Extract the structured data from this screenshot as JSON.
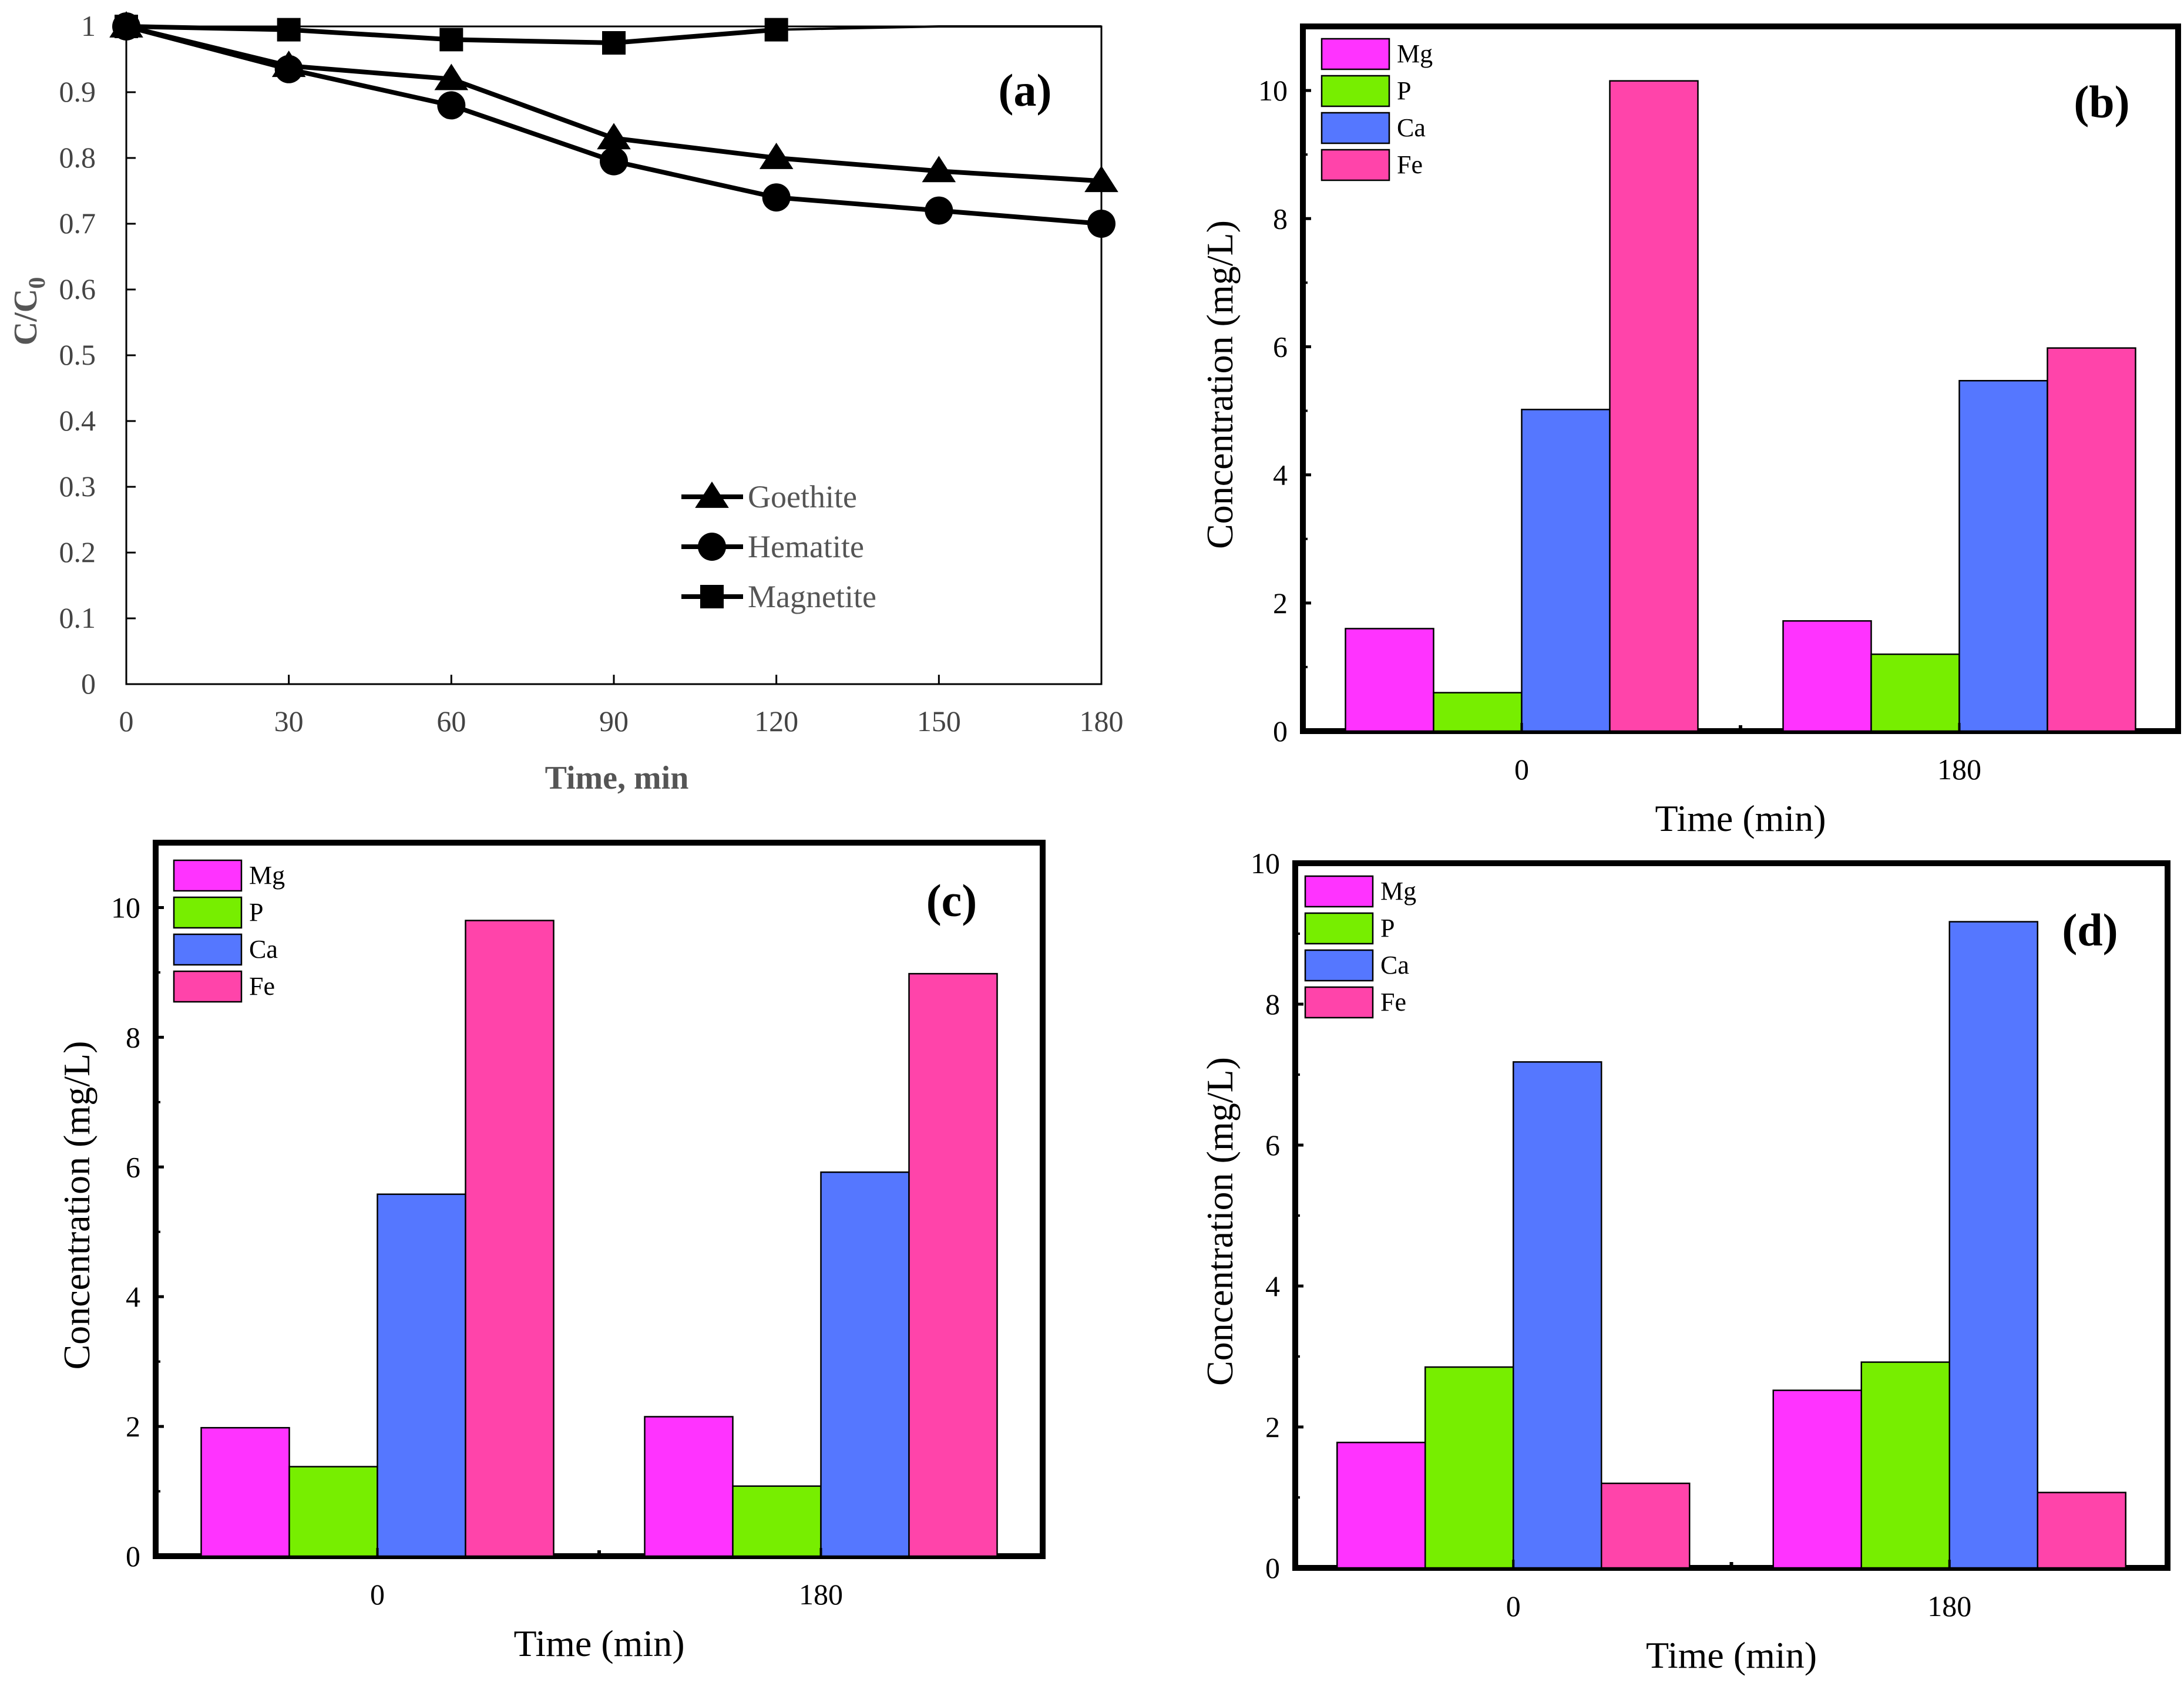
{
  "chart_data": [
    {
      "panel": "(a)",
      "type": "line",
      "xlabel": "Time, min",
      "ylabel": "C/C",
      "ylabel_sub": "0",
      "x": [
        0,
        30,
        60,
        90,
        120,
        150,
        180
      ],
      "x_ticks": [
        "0",
        "30",
        "60",
        "90",
        "120",
        "150",
        "180"
      ],
      "y_ticks": [
        "0",
        "0.1",
        "0.2",
        "0.3",
        "0.4",
        "0.5",
        "0.6",
        "0.7",
        "0.8",
        "0.9",
        "1"
      ],
      "xlim": [
        0,
        180
      ],
      "ylim": [
        0,
        1
      ],
      "series": [
        {
          "name": "Goethite",
          "marker": "triangle",
          "x": [
            0,
            30,
            60,
            90,
            120,
            150,
            180
          ],
          "values": [
            1.0,
            0.94,
            0.92,
            0.83,
            0.8,
            0.78,
            0.765
          ]
        },
        {
          "name": "Hematite",
          "marker": "circle",
          "x": [
            0,
            30,
            60,
            90,
            120,
            150,
            180
          ],
          "values": [
            1.0,
            0.935,
            0.88,
            0.795,
            0.74,
            0.72,
            0.7
          ]
        },
        {
          "name": "Magnetite",
          "marker": "square",
          "x": [
            0,
            30,
            60,
            90,
            120
          ],
          "values": [
            1.0,
            0.995,
            0.98,
            0.975,
            0.995
          ],
          "tail": [
            [
              120,
              0.995
            ],
            [
              150,
              1.0
            ],
            [
              180,
              1.0
            ]
          ]
        }
      ],
      "legend_position": "bottom-center"
    },
    {
      "panel": "(b)",
      "type": "bar",
      "xlabel": "Time (min)",
      "ylabel": "Concentration (mg/L)",
      "categories": [
        "0",
        "180"
      ],
      "y_ticks": [
        "0",
        "2",
        "4",
        "6",
        "8",
        "10"
      ],
      "ylim": [
        0,
        11
      ],
      "series": [
        {
          "name": "Mg",
          "color": "#ff33ff",
          "values": [
            1.6,
            1.72
          ]
        },
        {
          "name": "P",
          "color": "#77ee00",
          "values": [
            0.6,
            1.2
          ]
        },
        {
          "name": "Ca",
          "color": "#5577ff",
          "values": [
            5.02,
            5.47
          ]
        },
        {
          "name": "Fe",
          "color": "#ff44aa",
          "values": [
            10.15,
            5.98
          ]
        }
      ],
      "legend_position": "top-left"
    },
    {
      "panel": "(c)",
      "type": "bar",
      "xlabel": "Time (min)",
      "ylabel": "Concentration (mg/L)",
      "categories": [
        "0",
        "180"
      ],
      "y_ticks": [
        "0",
        "2",
        "4",
        "6",
        "8",
        "10"
      ],
      "ylim": [
        0,
        11
      ],
      "series": [
        {
          "name": "Mg",
          "color": "#ff33ff",
          "values": [
            1.98,
            2.15
          ]
        },
        {
          "name": "P",
          "color": "#77ee00",
          "values": [
            1.38,
            1.08
          ]
        },
        {
          "name": "Ca",
          "color": "#5577ff",
          "values": [
            5.58,
            5.92
          ]
        },
        {
          "name": "Fe",
          "color": "#ff44aa",
          "values": [
            9.8,
            8.98
          ]
        }
      ],
      "legend_position": "top-left"
    },
    {
      "panel": "(d)",
      "type": "bar",
      "xlabel": "Time (min)",
      "ylabel": "Concentration (mg/L)",
      "categories": [
        "0",
        "180"
      ],
      "y_ticks": [
        "0",
        "2",
        "4",
        "6",
        "8",
        "10"
      ],
      "ylim": [
        0,
        10
      ],
      "series": [
        {
          "name": "Mg",
          "color": "#ff33ff",
          "values": [
            1.78,
            2.52
          ]
        },
        {
          "name": "P",
          "color": "#77ee00",
          "values": [
            2.85,
            2.92
          ]
        },
        {
          "name": "Ca",
          "color": "#5577ff",
          "values": [
            7.18,
            9.17
          ]
        },
        {
          "name": "Fe",
          "color": "#ff44aa",
          "values": [
            1.2,
            1.07
          ]
        }
      ],
      "legend_position": "top-left"
    }
  ]
}
